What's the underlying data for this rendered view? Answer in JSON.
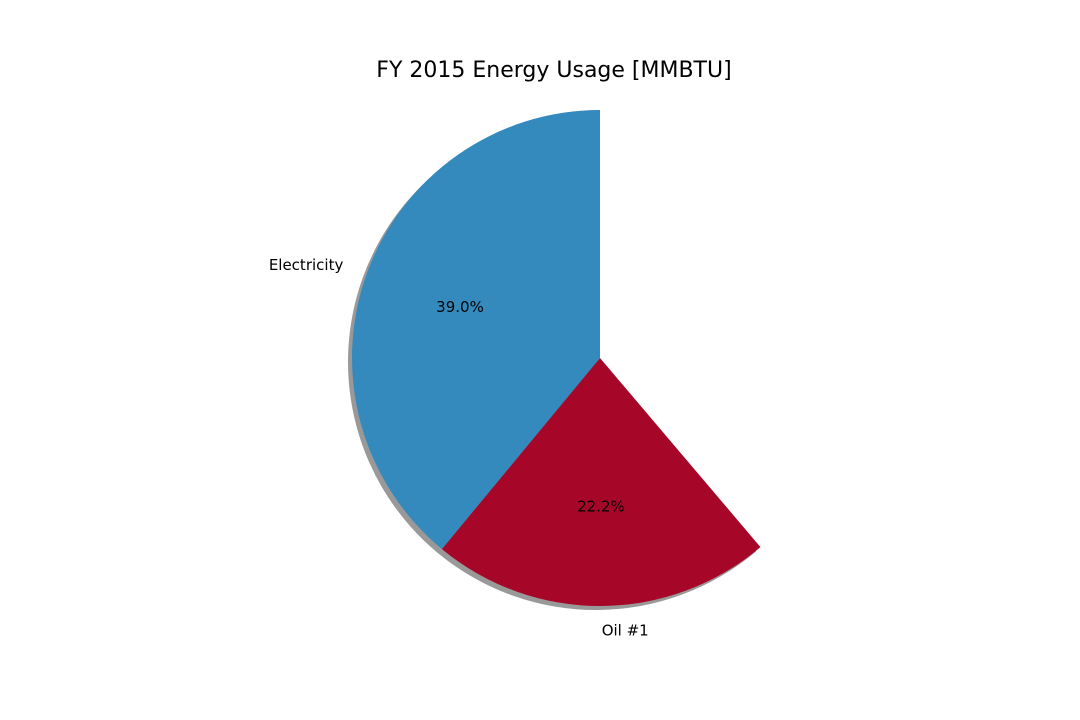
{
  "chart_data": {
    "type": "pie",
    "title": "FY 2015 Energy Usage [MMBTU]",
    "start_angle_deg": 90,
    "direction": "counterclockwise",
    "shadow": true,
    "slices": [
      {
        "label": "Electricity",
        "percent": 39.0,
        "pct_label": "39.0%",
        "color": "#348abd"
      },
      {
        "label": "Oil #1",
        "percent": 22.2,
        "pct_label": "22.2%",
        "color": "#a60628"
      }
    ]
  }
}
